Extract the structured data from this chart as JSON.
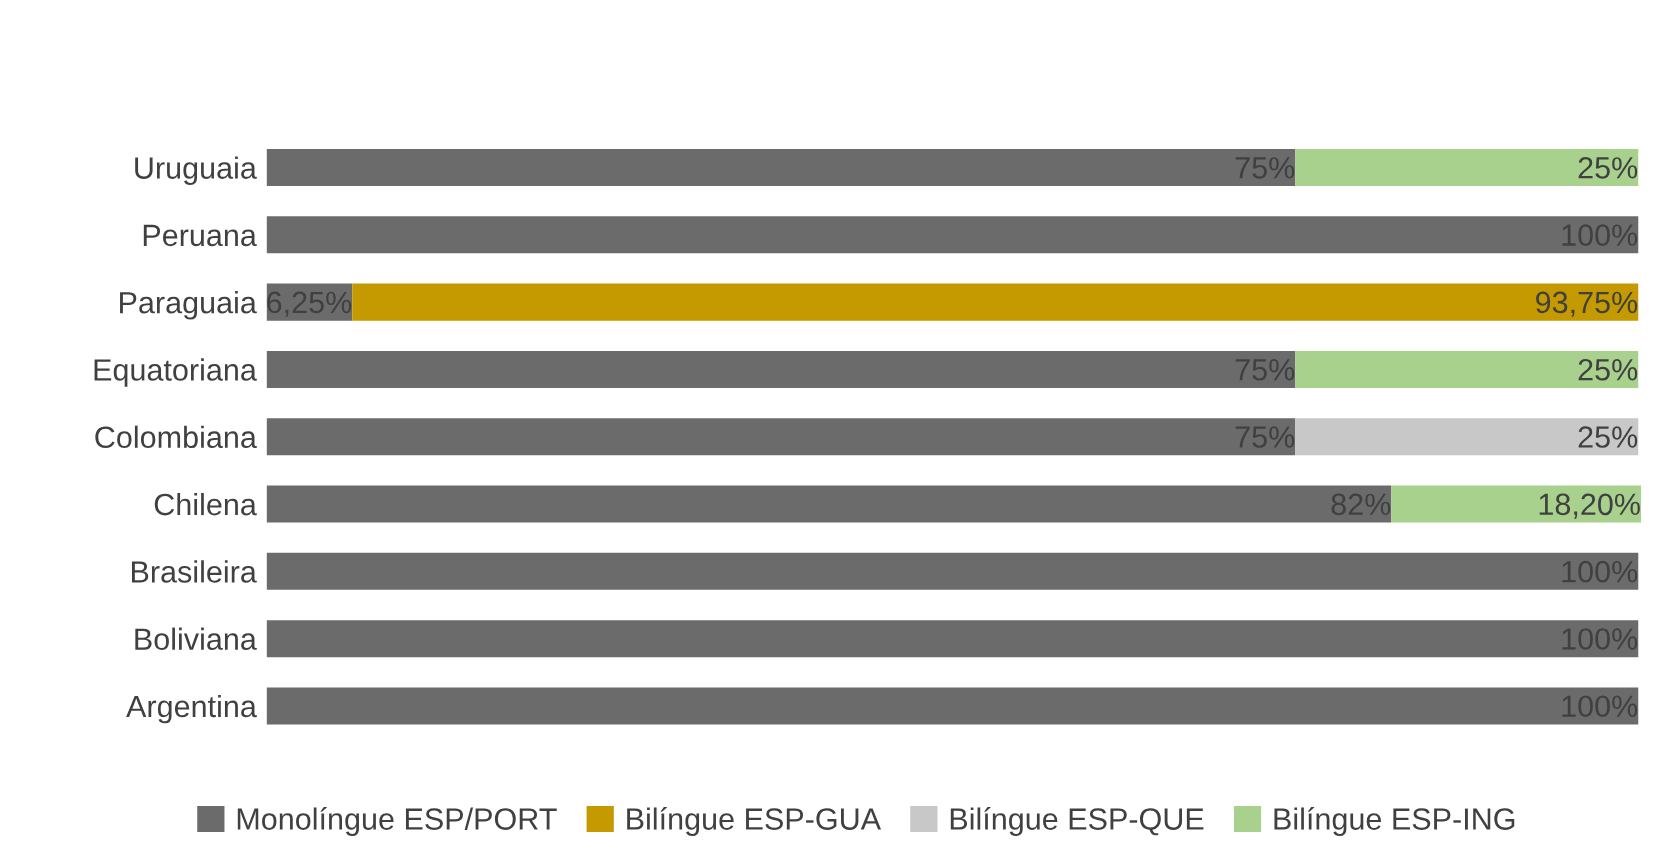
{
  "chart_data": {
    "type": "bar",
    "orientation": "horizontal",
    "stacked": true,
    "legend": "bottom",
    "categories": [
      "Uruguaia",
      "Peruana",
      "Paraguaia",
      "Equatoriana",
      "Colombiana",
      "Chilena",
      "Brasileira",
      "Boliviana",
      "Argentina"
    ],
    "series": [
      {
        "name": "Monolíngue ESP/PORT",
        "color": "#6b6b6b",
        "values": [
          75,
          100,
          6.25,
          75,
          75,
          82,
          100,
          100,
          100
        ],
        "value_labels": [
          "75%",
          "100%",
          "6,25%",
          "75%",
          "75%",
          "82%",
          "100%",
          "100%",
          "100%"
        ]
      },
      {
        "name": "Bilíngue ESP-GUA",
        "color": "#c49a00",
        "values": [
          null,
          null,
          93.75,
          null,
          null,
          null,
          null,
          null,
          null
        ],
        "value_labels": [
          null,
          null,
          "93,75%",
          null,
          null,
          null,
          null,
          null,
          null
        ]
      },
      {
        "name": "Bilíngue ESP-QUE",
        "color": "#c8c8c8",
        "values": [
          null,
          null,
          null,
          null,
          25,
          null,
          null,
          null,
          null
        ],
        "value_labels": [
          null,
          null,
          null,
          null,
          "25%",
          null,
          null,
          null,
          null
        ]
      },
      {
        "name": "Bilíngue ESP-ING",
        "color": "#a9d18e",
        "values": [
          25,
          null,
          null,
          25,
          null,
          18.2,
          null,
          null,
          null
        ],
        "value_labels": [
          "25%",
          null,
          null,
          "25%",
          null,
          "18,20%",
          null,
          null,
          null
        ]
      }
    ]
  }
}
